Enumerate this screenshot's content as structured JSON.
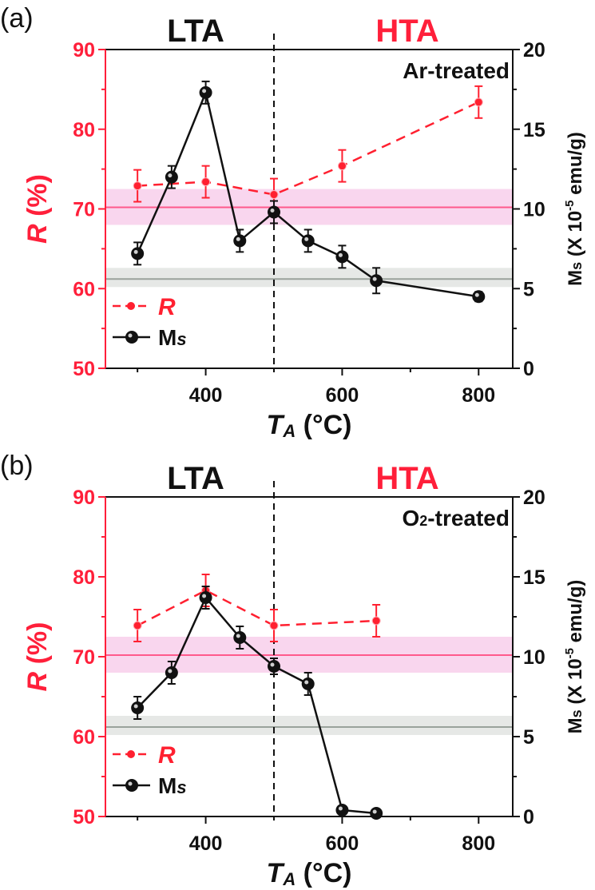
{
  "colors": {
    "r_series": "#ff2030",
    "ms_series": "#111111",
    "pink_band": "#f9d6ee",
    "pink_line": "#ff5a8c",
    "gray_band": "#e6e8e6",
    "gray_line": "#9aa29c",
    "left_axis": "#ff1f3a"
  },
  "chart_data": [
    {
      "type": "line",
      "panel_label": "(a)",
      "region_labels": {
        "left": "LTA",
        "right": "HTA"
      },
      "annotation": "Ar-treated",
      "xlabel": "T_A (°C)",
      "xlabel_main": "T",
      "xlabel_sub": "A",
      "xlabel_unit": " (°C)",
      "ylabel_left": "R (%)",
      "ylabel_left_main": "R",
      "ylabel_left_unit": " (%)",
      "ylabel_right": "Ms (X 10^-5 emu/g)",
      "xlim": [
        253,
        850
      ],
      "xticks": [
        400,
        600,
        800
      ],
      "xminor": [
        300,
        500,
        700
      ],
      "ylim_left": [
        50,
        90
      ],
      "yticks_left": [
        50,
        60,
        70,
        80,
        90
      ],
      "ylim_right": [
        0,
        20
      ],
      "yticks_right": [
        0,
        5,
        10,
        15,
        20
      ],
      "divider_x": 500,
      "bands": [
        {
          "name": "R reference",
          "axis": "left",
          "low": 68.0,
          "high": 72.5,
          "center": 70.2
        },
        {
          "name": "Ms reference",
          "axis": "left",
          "low": 60.2,
          "high": 62.6,
          "center": 61.2
        }
      ],
      "legend": {
        "position": "bottom-left",
        "entries": [
          "R",
          "Ms"
        ]
      },
      "series": [
        {
          "name": "R",
          "axis": "left",
          "style": "dashed",
          "x": [
            300,
            400,
            500,
            600,
            800
          ],
          "y": [
            72.9,
            73.4,
            71.8,
            75.4,
            83.4
          ],
          "err": [
            2.0,
            2.0,
            2.0,
            2.0,
            2.0
          ]
        },
        {
          "name": "Ms",
          "axis": "right",
          "style": "solid",
          "x": [
            300,
            350,
            400,
            450,
            500,
            550,
            600,
            650,
            800
          ],
          "y": [
            7.2,
            12.0,
            17.3,
            8.0,
            9.8,
            8.0,
            7.0,
            5.5,
            4.5
          ],
          "err": [
            0.7,
            0.7,
            0.7,
            0.7,
            0.7,
            0.7,
            0.7,
            0.8,
            0.3
          ]
        }
      ]
    },
    {
      "type": "line",
      "panel_label": "(b)",
      "region_labels": {
        "left": "LTA",
        "right": "HTA"
      },
      "annotation": "O2-treated",
      "annotation_main": "O",
      "annotation_sub": "2",
      "annotation_rest": "-treated",
      "xlabel": "T_A (°C)",
      "xlabel_main": "T",
      "xlabel_sub": "A",
      "xlabel_unit": " (°C)",
      "ylabel_left": "R (%)",
      "ylabel_left_main": "R",
      "ylabel_left_unit": " (%)",
      "ylabel_right": "Ms (X 10^-5 emu/g)",
      "xlim": [
        253,
        850
      ],
      "xticks": [
        400,
        600,
        800
      ],
      "xminor": [
        300,
        500,
        700
      ],
      "ylim_left": [
        50,
        90
      ],
      "yticks_left": [
        50,
        60,
        70,
        80,
        90
      ],
      "ylim_right": [
        0,
        20
      ],
      "yticks_right": [
        0,
        5,
        10,
        15,
        20
      ],
      "divider_x": 500,
      "bands": [
        {
          "name": "R reference",
          "axis": "left",
          "low": 68.0,
          "high": 72.5,
          "center": 70.2
        },
        {
          "name": "Ms reference",
          "axis": "left",
          "low": 60.2,
          "high": 62.6,
          "center": 61.2
        }
      ],
      "legend": {
        "position": "bottom-left",
        "entries": [
          "R",
          "Ms"
        ]
      },
      "series": [
        {
          "name": "R",
          "axis": "left",
          "style": "dashed",
          "x": [
            300,
            400,
            500,
            650
          ],
          "y": [
            73.9,
            78.3,
            73.9,
            74.5
          ],
          "err": [
            2.0,
            2.0,
            2.0,
            2.0
          ]
        },
        {
          "name": "Ms",
          "axis": "right",
          "style": "solid",
          "x": [
            300,
            350,
            400,
            450,
            500,
            550,
            600,
            650
          ],
          "y": [
            6.8,
            9.0,
            13.7,
            11.2,
            9.4,
            8.3,
            0.4,
            0.2
          ],
          "err": [
            0.7,
            0.7,
            0.7,
            0.7,
            0.5,
            0.7,
            0.1,
            0.1
          ]
        }
      ]
    }
  ],
  "legend_labels": {
    "r": "R",
    "ms_main": "M",
    "ms_sub": "s"
  },
  "right_axis_parts": {
    "main": "M",
    "sub": "s",
    "mid": " (X 10",
    "exp": "-5",
    "tail": " emu/g)"
  }
}
